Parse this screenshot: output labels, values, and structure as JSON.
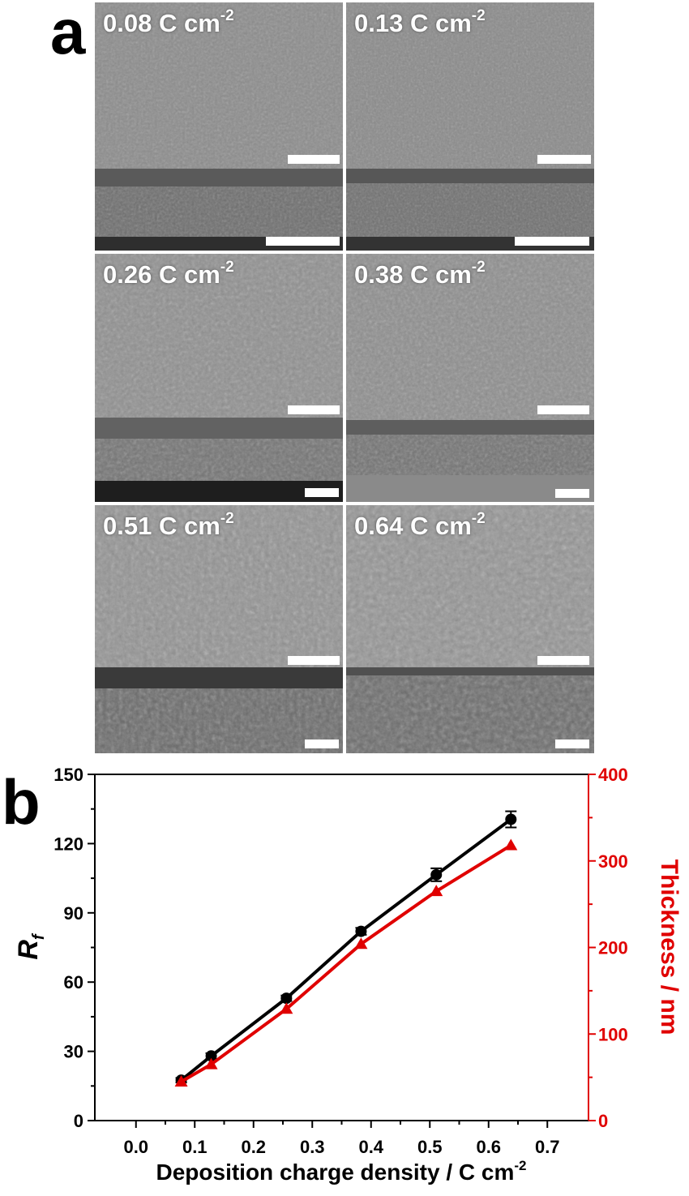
{
  "panel_a": {
    "letter": "a",
    "tiles": [
      {
        "label": "0.08 C cm",
        "sup": "-2"
      },
      {
        "label": "0.13 C cm",
        "sup": "-2"
      },
      {
        "label": "0.26 C cm",
        "sup": "-2"
      },
      {
        "label": "0.38 C cm",
        "sup": "-2"
      },
      {
        "label": "0.51 C cm",
        "sup": "-2"
      },
      {
        "label": "0.64 C cm",
        "sup": "-2"
      }
    ]
  },
  "panel_b": {
    "letter": "b",
    "ylabel_left_main": "R",
    "ylabel_left_sub": "f",
    "ylabel_right": "Thickness / nm",
    "xlabel_main": "Deposition charge density / C cm",
    "xlabel_sup": "-2",
    "colors": {
      "rf": "#000000",
      "thickness": "#e00000"
    }
  },
  "chart_data": {
    "type": "line",
    "xlabel": "Deposition charge density / C cm-2",
    "x_ticks": [
      "0.0",
      "0.1",
      "0.2",
      "0.3",
      "0.4",
      "0.5",
      "0.6",
      "0.7"
    ],
    "y_left_ticks": [
      "0",
      "30",
      "60",
      "90",
      "120",
      "150"
    ],
    "y_right_ticks": [
      "0",
      "100",
      "200",
      "300",
      "400"
    ],
    "xlim": [
      -0.07,
      0.77
    ],
    "ylim_left": [
      0,
      150
    ],
    "ylim_right": [
      0,
      400
    ],
    "x": [
      0.077,
      0.128,
      0.256,
      0.383,
      0.511,
      0.638
    ],
    "series": [
      {
        "axis": "left",
        "marker": "circle",
        "color": "#000000",
        "values": [
          17.5,
          28,
          53,
          82,
          106.5,
          130.5
        ],
        "errors": [
          1.0,
          1.2,
          1.2,
          1.5,
          2.8,
          3.5
        ]
      },
      {
        "axis": "right",
        "marker": "triangle",
        "color": "#e00000",
        "values": [
          45,
          65,
          129,
          204,
          265,
          318
        ]
      }
    ],
    "grid": false
  }
}
